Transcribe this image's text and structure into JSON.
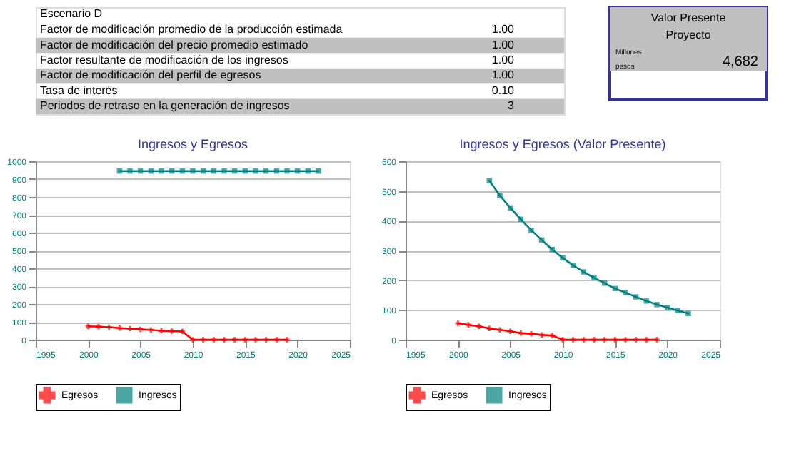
{
  "chart_data": [
    {
      "type": "other",
      "title": "Escenario D",
      "categories": [
        "Factor de modificación promedio de la producción estimada",
        "Factor de modificación del precio promedio estimado",
        "Factor resultante de modificación de los ingresos",
        "Factor de modificación del perfil de egresos",
        "Tasa de interés",
        "Periodos de retraso en la generación de ingresos"
      ],
      "value_labels": [
        "1.00",
        "1.00",
        "1.00",
        "1.00",
        "0.10",
        "3"
      ]
    },
    {
      "type": "other",
      "title": "Valor Presente Proyecto",
      "annotations": [
        "Millones",
        "pesos",
        "4,682"
      ]
    },
    {
      "type": "line",
      "title": "Ingresos y Egresos",
      "xlim": [
        1995,
        2025
      ],
      "xticks": [
        1995,
        2000,
        2005,
        2010,
        2015,
        2020,
        2025
      ],
      "ylim": [
        0,
        1000
      ],
      "yticks": [
        0,
        100,
        200,
        300,
        400,
        500,
        600,
        700,
        800,
        900,
        1000
      ],
      "grid": "y",
      "legend": "bottom",
      "series": [
        {
          "name": "Egresos",
          "color": "#ff0000",
          "marker": "cross",
          "x": [
            2000,
            2001,
            2002,
            2003,
            2004,
            2005,
            2006,
            2007,
            2008,
            2009,
            2010,
            2011,
            2012,
            2013,
            2014,
            2015,
            2016,
            2017,
            2018,
            2019
          ],
          "values": [
            75,
            73,
            70,
            65,
            62,
            58,
            55,
            50,
            48,
            46,
            0,
            0,
            0,
            0,
            0,
            0,
            0,
            0,
            0,
            0
          ]
        },
        {
          "name": "Ingresos",
          "color": "#008080",
          "marker": "square",
          "x": [
            2003,
            2004,
            2005,
            2006,
            2007,
            2008,
            2009,
            2010,
            2011,
            2012,
            2013,
            2014,
            2015,
            2016,
            2017,
            2018,
            2019,
            2020,
            2021,
            2022
          ],
          "values": [
            945,
            945,
            945,
            945,
            945,
            945,
            945,
            945,
            945,
            945,
            945,
            945,
            945,
            945,
            945,
            945,
            945,
            945,
            945,
            945
          ]
        }
      ]
    },
    {
      "type": "line",
      "title": "Ingresos y Egresos (Valor Presente)",
      "xlim": [
        1995,
        2025
      ],
      "xticks": [
        1995,
        2000,
        2005,
        2010,
        2015,
        2020,
        2025
      ],
      "ylim": [
        0,
        600
      ],
      "yticks": [
        0,
        100,
        200,
        300,
        400,
        500,
        600
      ],
      "grid": "y",
      "legend": "bottom",
      "series": [
        {
          "name": "Egresos",
          "color": "#ff0000",
          "marker": "cross",
          "x": [
            2000,
            2001,
            2002,
            2003,
            2004,
            2005,
            2006,
            2007,
            2008,
            2009,
            2010,
            2011,
            2012,
            2013,
            2014,
            2015,
            2016,
            2017,
            2018,
            2019
          ],
          "values": [
            55,
            50,
            45,
            38,
            33,
            28,
            22,
            20,
            16,
            14,
            0,
            0,
            0,
            0,
            0,
            0,
            0,
            0,
            0,
            0
          ]
        },
        {
          "name": "Ingresos",
          "color": "#008080",
          "marker": "square",
          "x": [
            2003,
            2004,
            2005,
            2006,
            2007,
            2008,
            2009,
            2010,
            2011,
            2012,
            2013,
            2014,
            2015,
            2016,
            2017,
            2018,
            2019,
            2020,
            2021,
            2022
          ],
          "values": [
            535,
            485,
            443,
            405,
            368,
            335,
            303,
            275,
            250,
            228,
            208,
            190,
            172,
            158,
            144,
            130,
            118,
            108,
            98,
            88
          ]
        }
      ]
    }
  ]
}
